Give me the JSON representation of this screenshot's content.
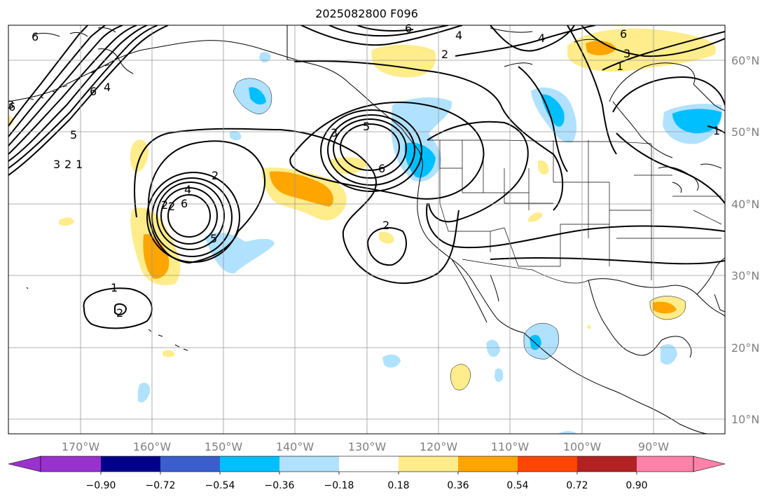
{
  "title": "2025082800 F096",
  "map": {
    "lon_labels": [
      "170°W",
      "160°W",
      "150°W",
      "140°W",
      "130°W",
      "120°W",
      "110°W",
      "100°W",
      "90°W"
    ],
    "lat_labels": [
      "60°N",
      "50°N",
      "40°N",
      "30°N",
      "20°N",
      "10°N"
    ],
    "lon_range": [
      -180,
      -80
    ],
    "lat_range": [
      8,
      65
    ],
    "grid": true
  },
  "colorbar": {
    "ticks": [
      "−0.90",
      "−0.72",
      "−0.54",
      "−0.36",
      "−0.18",
      "0.18",
      "0.36",
      "0.54",
      "0.72",
      "0.90"
    ],
    "colors": [
      "#9932cc",
      "#00008b",
      "#3a5fcd",
      "#00bfff",
      "#b0e2ff",
      "#ffffff",
      "#ffec8b",
      "#ffa500",
      "#ff4500",
      "#b22222",
      "#ff82ab"
    ],
    "extend": "both"
  },
  "contour_labels": [
    "6",
    "4",
    "6",
    "2",
    "3",
    "4",
    "6",
    "3",
    "6",
    "4",
    "1",
    "5",
    "2",
    "3",
    "1",
    "1",
    "2",
    "3",
    "6",
    "6",
    "5",
    "2",
    "2",
    "4",
    "6",
    "5",
    "2",
    "1",
    "2"
  ]
}
